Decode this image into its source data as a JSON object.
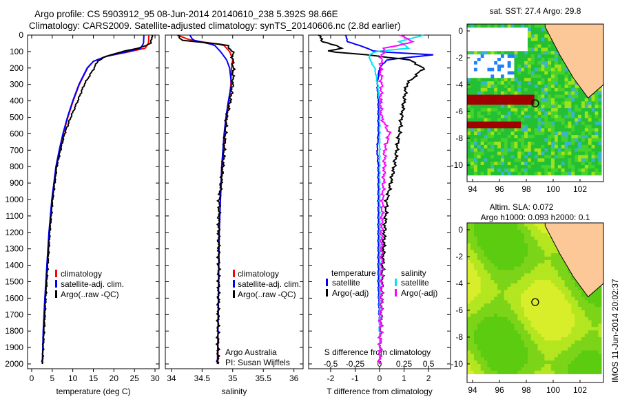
{
  "title": {
    "line1": "Argo profile: CS 5903912_95 08-Jun-2014 20140610_238 5.392S 98.66E",
    "line2": "Climatology: CARS2009. Satellite-adjusted climatology: synTS_20140606.nc (2.8d earlier)"
  },
  "side_label": "IMOS 11-Jun-2014 20:02:37",
  "colors": {
    "climatology": "#ff0000",
    "satellite": "#0000ff",
    "argo": "#000000",
    "sal_satellite": "#00e5ee",
    "sal_argo": "#ff00ff",
    "land": "#fdc898"
  },
  "chart_data": [
    {
      "type": "line",
      "name": "temperature",
      "xlabel": "temperature (deg C)",
      "ylabel": "",
      "xlim": [
        -1,
        31
      ],
      "ylim": [
        2050,
        0
      ],
      "xticks": [
        "0",
        "5",
        "10",
        "15",
        "20",
        "25",
        "30"
      ],
      "xtick_vals": [
        0,
        5,
        10,
        15,
        20,
        25,
        30
      ],
      "yticks": [
        "0",
        "100",
        "200",
        "300",
        "400",
        "500",
        "600",
        "700",
        "800",
        "900",
        "1000",
        "1100",
        "1200",
        "1300",
        "1400",
        "1500",
        "1600",
        "1700",
        "1800",
        "1900",
        "2000"
      ],
      "depth": [
        0,
        50,
        80,
        100,
        130,
        160,
        200,
        300,
        400,
        500,
        600,
        700,
        800,
        1000,
        1200,
        1400,
        1600,
        1800,
        2000
      ],
      "series": [
        {
          "name": "climatology",
          "values": [
            28.5,
            28.4,
            27.6,
            24,
            18,
            15,
            13.6,
            11.6,
            10.1,
            8.8,
            7.7,
            6.8,
            6,
            5,
            4.3,
            3.8,
            3.3,
            2.9,
            2.6
          ]
        },
        {
          "name": "satellite-adj. clim.",
          "values": [
            27.3,
            27.2,
            26.5,
            23.5,
            18,
            15,
            13.5,
            11.5,
            10,
            8.7,
            7.6,
            6.7,
            5.9,
            4.9,
            4.2,
            3.7,
            3.2,
            2.8,
            2.6
          ]
        },
        {
          "name": "Argo(..raw -QC)",
          "values": [
            29.3,
            29,
            26,
            22,
            18,
            16,
            15.2,
            12.8,
            11.2,
            9.5,
            8,
            7,
            6.1,
            5.1,
            4.4,
            3.9,
            3.4,
            3,
            2.6
          ]
        }
      ],
      "legend": [
        "climatology",
        "satellite-adj. clim.",
        "Argo(..raw -QC)"
      ]
    },
    {
      "type": "line",
      "name": "salinity",
      "xlabel": "salinity",
      "xlim": [
        33.9,
        36.15
      ],
      "xticks": [
        "34",
        "34.5",
        "35",
        "35.5",
        "36"
      ],
      "xtick_vals": [
        34,
        34.5,
        35,
        35.5,
        36
      ],
      "depth": [
        0,
        30,
        60,
        100,
        150,
        200,
        300,
        400,
        500,
        600,
        800,
        1000,
        1200,
        1500,
        1800,
        2000
      ],
      "series": [
        {
          "name": "climatology",
          "values": [
            34.1,
            34.3,
            34.85,
            34.95,
            35.0,
            34.98,
            34.97,
            34.94,
            34.9,
            34.87,
            34.83,
            34.8,
            34.78,
            34.77,
            34.76,
            34.76
          ]
        },
        {
          "name": "satellite-adj. clim.",
          "values": [
            34.3,
            34.35,
            34.7,
            34.8,
            34.9,
            34.95,
            34.98,
            34.93,
            34.89,
            34.86,
            34.82,
            34.8,
            34.78,
            34.77,
            34.76,
            34.75
          ]
        },
        {
          "name": "Argo(..raw -QC)",
          "values": [
            34.1,
            34.15,
            34.9,
            35.0,
            35.0,
            35.01,
            35.0,
            34.96,
            34.9,
            34.88,
            34.84,
            34.78,
            34.77,
            34.77,
            34.76,
            34.76
          ]
        }
      ],
      "legend": [
        "climatology",
        "satellite-adj. clim.",
        "Argo(..raw -QC)"
      ],
      "annotation": [
        "Argo Australia",
        "PI: Susan Wijffels"
      ]
    },
    {
      "type": "line",
      "name": "difference",
      "xlabel": "T difference from climatology",
      "x2label": "S difference from climatology",
      "xlim": [
        -2.9,
        2.9
      ],
      "xticks": [
        "-2",
        "-1",
        "0",
        "1",
        "2"
      ],
      "xtick_vals": [
        -2,
        -1,
        0,
        1,
        2
      ],
      "x2ticks": [
        "-0.5",
        "-0.25",
        "0",
        "0.25",
        "0.5"
      ],
      "x2tick_vals": [
        -0.5,
        -0.25,
        0,
        0.25,
        0.5
      ],
      "depth": [
        0,
        40,
        80,
        100,
        120,
        150,
        200,
        300,
        400,
        500,
        600,
        700,
        800,
        1000,
        1200,
        1500,
        1800,
        2000
      ],
      "series": [
        {
          "name": "T satellite",
          "axis": "T",
          "values": [
            -1.4,
            -1.3,
            -0.5,
            -0.2,
            2.2,
            0.3,
            0,
            -0.1,
            -0.05,
            -0.05,
            -0.05,
            -0.1,
            -0.05,
            -0.05,
            -0.05,
            -0.05,
            0,
            0
          ]
        },
        {
          "name": "T Argo(-adj)",
          "axis": "T",
          "values": [
            -2.5,
            -2.3,
            -1.5,
            -2.2,
            -0.5,
            1.2,
            1.8,
            1.1,
            1.0,
            0.9,
            0.8,
            0.7,
            0.6,
            0.3,
            0.2,
            0.1,
            0.05,
            0
          ]
        },
        {
          "name": "S satellite",
          "axis": "S",
          "values": [
            0.45,
            0.2,
            0.3,
            -0.05,
            -0.1,
            -0.1,
            -0.05,
            -0.02,
            0,
            0,
            0,
            0,
            0,
            0,
            0,
            0,
            0,
            0
          ]
        },
        {
          "name": "S Argo(-adj)",
          "axis": "S",
          "values": [
            0.2,
            0.35,
            0.05,
            0.05,
            0.02,
            0.02,
            0.01,
            0.02,
            0.01,
            0.02,
            0.1,
            0.05,
            0.05,
            0.03,
            0.02,
            0.02,
            0.01,
            0
          ]
        }
      ],
      "legend": {
        "temperature": "temperature",
        "salinity": "salinity",
        "items": [
          "satellite",
          "Argo(-adj)",
          "satellite",
          "Argo(-adj)"
        ]
      }
    },
    {
      "type": "heatmap",
      "name": "sst-map",
      "title": "sat. SST: 27.4  Argo: 29.8",
      "xticks": [
        "94",
        "96",
        "98",
        "100",
        "102"
      ],
      "yticks": [
        "0",
        "-2",
        "-4",
        "-6",
        "-8",
        "-10"
      ],
      "profile_location": [
        98.66,
        -5.392
      ]
    },
    {
      "type": "heatmap",
      "name": "sla-map",
      "title": [
        "Altim. SLA: 0.072",
        "Argo h1000: 0.093 h2000: 0.1"
      ],
      "xticks": [
        "94",
        "96",
        "98",
        "100",
        "102"
      ],
      "yticks": [
        "0",
        "-2",
        "-4",
        "-6",
        "-8",
        "-10"
      ],
      "profile_location": [
        98.66,
        -5.392
      ]
    }
  ]
}
